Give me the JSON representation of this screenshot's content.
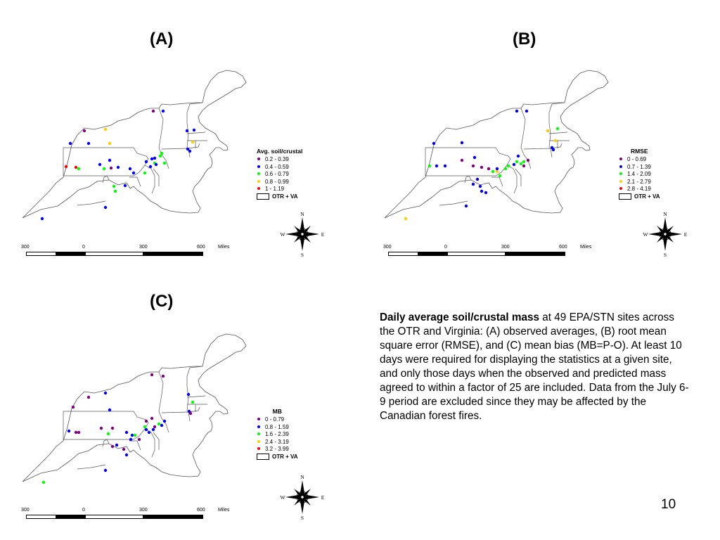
{
  "panels": [
    {
      "label": "(A)",
      "legend_title": "Avg. soil/crustal",
      "legend": [
        {
          "range": "0.2 - 0.39",
          "color": "#800080"
        },
        {
          "range": "0.4 - 0.59",
          "color": "#0000ff"
        },
        {
          "range": "0.6 - 0.79",
          "color": "#00ff00"
        },
        {
          "range": "0.8 - 0.99",
          "color": "#ffcc00"
        },
        {
          "range": "1 - 1.19",
          "color": "#ff0000"
        }
      ]
    },
    {
      "label": "(B)",
      "legend_title": "RMSE",
      "legend": [
        {
          "range": "0 - 0.69",
          "color": "#800080"
        },
        {
          "range": "0.7 - 1.39",
          "color": "#0000ff"
        },
        {
          "range": "1.4 - 2.09",
          "color": "#00ff00"
        },
        {
          "range": "2.1 - 2.79",
          "color": "#ffcc00"
        },
        {
          "range": "2.8 - 4.19",
          "color": "#ff0000"
        }
      ]
    },
    {
      "label": "(C)",
      "legend_title": "MB",
      "legend": [
        {
          "range": "0 - 0.79",
          "color": "#800080"
        },
        {
          "range": "0.8 - 1.59",
          "color": "#0000ff"
        },
        {
          "range": "1.6 - 2.39",
          "color": "#00ff00"
        },
        {
          "range": "2.4 - 3.19",
          "color": "#ffcc00"
        },
        {
          "range": "3.2 - 3.99",
          "color": "#ff0000"
        }
      ]
    }
  ],
  "legend_region": "OTR + VA",
  "scale": {
    "left": "300",
    "zero": "0",
    "mid": "300",
    "right": "600",
    "unit": "Miles"
  },
  "compass": {
    "n": "N",
    "s": "S",
    "e": "E",
    "w": "W"
  },
  "description": {
    "bold": "Daily average soil/crustal mass",
    "text": " at 49 EPA/STN sites across the OTR and Virginia: (A) observed averages, (B) root mean square error (RMSE), and (C) mean bias (MB=P-O).  At least 10 days were required for displaying the statistics at a given site, and only those days when the observed and predicted mass agreed to within a factor of 25 are included.  Data from the July 6-9 period are excluded since they may be affected by the Canadian forest fires."
  },
  "page_number": "10"
}
